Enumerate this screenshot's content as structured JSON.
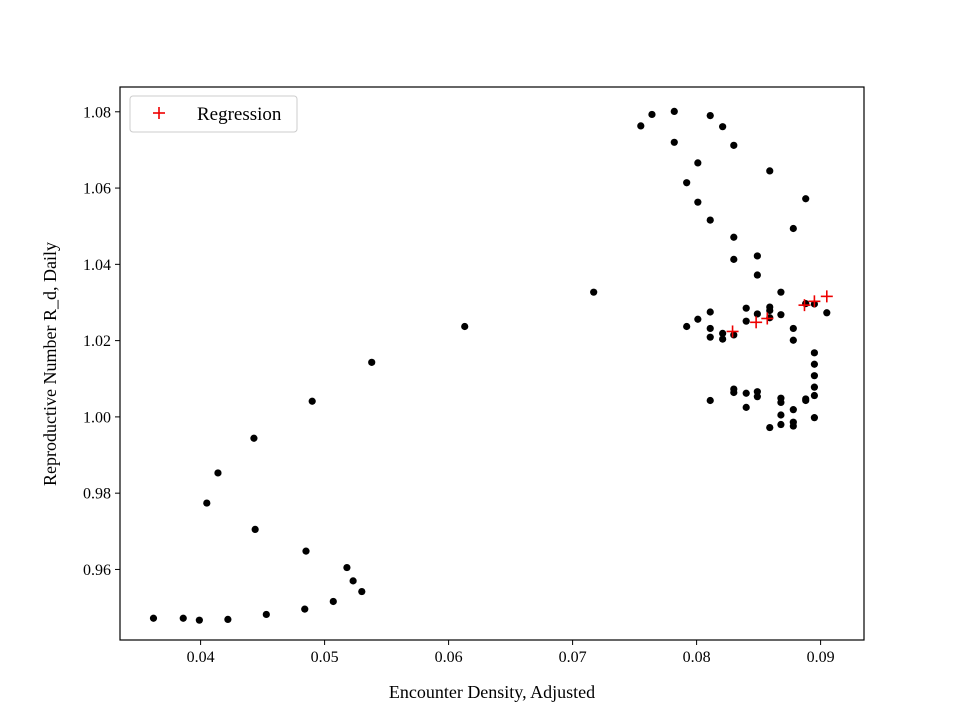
{
  "chart_data": {
    "type": "scatter",
    "title": "",
    "xlabel": "Encounter Density, Adjusted",
    "ylabel": "Reproductive Number R_d, Daily",
    "xlim": [
      0.0335,
      0.0935
    ],
    "ylim": [
      0.9415,
      1.0865
    ],
    "xticks": [
      0.04,
      0.05,
      0.06,
      0.07,
      0.08,
      0.09
    ],
    "xtick_labels": [
      "0.04",
      "0.05",
      "0.06",
      "0.07",
      "0.08",
      "0.09"
    ],
    "yticks": [
      0.96,
      0.98,
      1.0,
      1.02,
      1.04,
      1.06,
      1.08
    ],
    "ytick_labels": [
      "0.96",
      "0.98",
      "1.00",
      "1.02",
      "1.04",
      "1.06",
      "1.08"
    ],
    "grid": false,
    "legend": {
      "placement": "top-left",
      "entries": [
        "Regression"
      ]
    },
    "series": [
      {
        "marker": "circle",
        "color": "#000000",
        "points": [
          [
            0.0362,
            0.9472
          ],
          [
            0.0386,
            0.9472
          ],
          [
            0.0399,
            0.9467
          ],
          [
            0.0422,
            0.9469
          ],
          [
            0.0453,
            0.9482
          ],
          [
            0.0484,
            0.9496
          ],
          [
            0.0507,
            0.9516
          ],
          [
            0.053,
            0.9542
          ],
          [
            0.0523,
            0.957
          ],
          [
            0.0518,
            0.9605
          ],
          [
            0.0485,
            0.9648
          ],
          [
            0.0444,
            0.9705
          ],
          [
            0.0405,
            0.9774
          ],
          [
            0.0414,
            0.9853
          ],
          [
            0.0443,
            0.9944
          ],
          [
            0.049,
            1.0041
          ],
          [
            0.0538,
            1.0143
          ],
          [
            0.0613,
            1.0237
          ],
          [
            0.0717,
            1.0327
          ],
          [
            0.0755,
            1.0763
          ],
          [
            0.0764,
            1.0793
          ],
          [
            0.0782,
            1.0801
          ],
          [
            0.0811,
            1.079
          ],
          [
            0.0821,
            1.0761
          ],
          [
            0.083,
            1.0712
          ],
          [
            0.0782,
            1.072
          ],
          [
            0.0801,
            1.0666
          ],
          [
            0.0792,
            1.0614
          ],
          [
            0.0801,
            1.0563
          ],
          [
            0.0811,
            1.0516
          ],
          [
            0.083,
            1.0471
          ],
          [
            0.083,
            1.0413
          ],
          [
            0.0859,
            1.0645
          ],
          [
            0.0888,
            1.0572
          ],
          [
            0.0878,
            1.0494
          ],
          [
            0.0849,
            1.0422
          ],
          [
            0.0849,
            1.0372
          ],
          [
            0.0868,
            1.0327
          ],
          [
            0.0792,
            1.0237
          ],
          [
            0.0801,
            1.0256
          ],
          [
            0.0811,
            1.0275
          ],
          [
            0.0811,
            1.0232
          ],
          [
            0.0811,
            1.0209
          ],
          [
            0.0821,
            1.0219
          ],
          [
            0.0821,
            1.0204
          ],
          [
            0.083,
            1.0215
          ],
          [
            0.084,
            1.0285
          ],
          [
            0.084,
            1.0251
          ],
          [
            0.0849,
            1.027
          ],
          [
            0.0859,
            1.0288
          ],
          [
            0.0859,
            1.0279
          ],
          [
            0.0859,
            1.026
          ],
          [
            0.0868,
            1.0268
          ],
          [
            0.0878,
            1.0232
          ],
          [
            0.0878,
            1.0201
          ],
          [
            0.0888,
            1.0297
          ],
          [
            0.0895,
            1.0296
          ],
          [
            0.0905,
            1.0273
          ],
          [
            0.0895,
            1.0168
          ],
          [
            0.0895,
            1.0138
          ],
          [
            0.0895,
            1.0108
          ],
          [
            0.0895,
            1.0078
          ],
          [
            0.0895,
            1.0056
          ],
          [
            0.0895,
            0.9998
          ],
          [
            0.0811,
            1.0043
          ],
          [
            0.083,
            1.0073
          ],
          [
            0.083,
            1.0064
          ],
          [
            0.084,
            1.0062
          ],
          [
            0.084,
            1.0025
          ],
          [
            0.0849,
            1.0066
          ],
          [
            0.0849,
            1.0053
          ],
          [
            0.0859,
            0.9972
          ],
          [
            0.0868,
            1.0049
          ],
          [
            0.0868,
            1.0038
          ],
          [
            0.0868,
            1.0005
          ],
          [
            0.0868,
            0.998
          ],
          [
            0.0878,
            1.0019
          ],
          [
            0.0878,
            0.9986
          ],
          [
            0.0878,
            0.9976
          ],
          [
            0.0888,
            1.0043
          ],
          [
            0.0888,
            1.0047
          ]
        ]
      },
      {
        "name": "Regression",
        "marker": "plus",
        "color": "#ee0000",
        "points": [
          [
            0.0829,
            1.0224
          ],
          [
            0.0848,
            1.0248
          ],
          [
            0.0857,
            1.0258
          ],
          [
            0.0887,
            1.0293
          ],
          [
            0.0895,
            1.0303
          ],
          [
            0.0905,
            1.0316
          ]
        ]
      }
    ]
  }
}
